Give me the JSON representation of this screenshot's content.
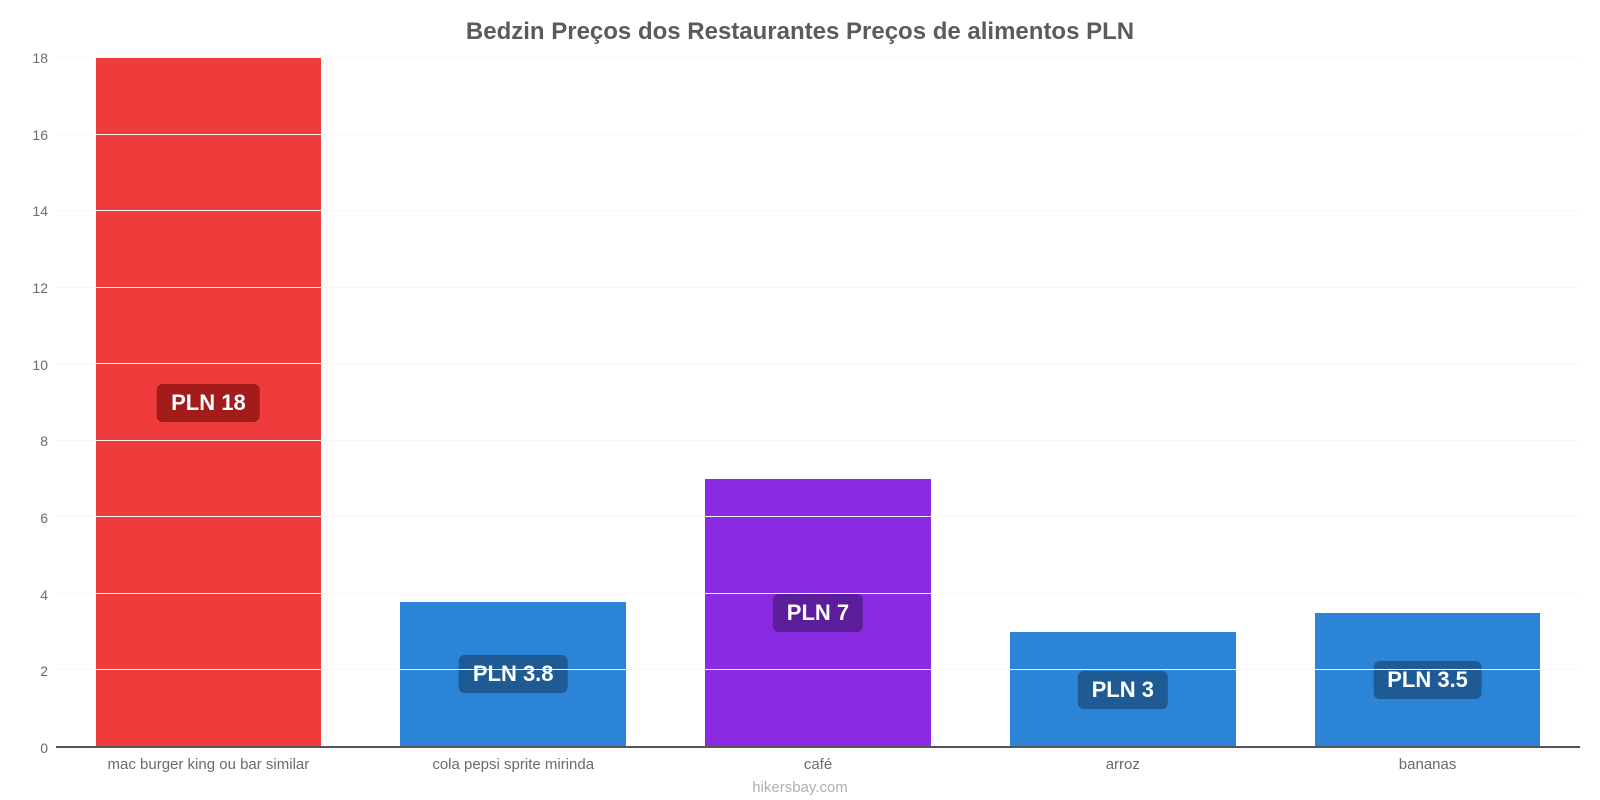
{
  "chart": {
    "type": "bar",
    "title": "Bedzin Preços dos Restaurantes Preços de alimentos PLN",
    "title_fontsize": 24,
    "title_color": "#5b5b5b",
    "credit": "hikersbay.com",
    "credit_color": "#b0b0b0",
    "background_color": "#ffffff",
    "grid_color": "#f7f7f7",
    "axis_color": "#555555",
    "label_color": "#6b6b6b",
    "label_fontsize": 15,
    "value_label_fontsize": 22,
    "value_label_text_color": "#ffffff",
    "bar_width": 0.74,
    "ylim": [
      0,
      18
    ],
    "ytick_step": 2,
    "yticks": [
      0,
      2,
      4,
      6,
      8,
      10,
      12,
      14,
      16,
      18
    ],
    "categories": [
      "mac burger king ou bar similar",
      "cola pepsi sprite mirinda",
      "café",
      "arroz",
      "bananas"
    ],
    "values": [
      18,
      3.8,
      7,
      3,
      3.5
    ],
    "value_labels": [
      "PLN 18",
      "PLN 3.8",
      "PLN 7",
      "PLN 3",
      "PLN 3.5"
    ],
    "bar_colors": [
      "#ef3b3b",
      "#2c84d6",
      "#8a2be2",
      "#2c84d6",
      "#2c84d6"
    ],
    "badge_colors": [
      "#a31b1b",
      "#1e5a93",
      "#5c1d9a",
      "#1e5a93",
      "#1e5a93"
    ]
  }
}
